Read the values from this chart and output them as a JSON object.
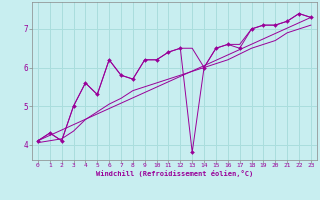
{
  "xlabel": "Windchill (Refroidissement éolien,°C)",
  "bg_color": "#c8eef0",
  "line_color": "#990099",
  "xlim": [
    -0.5,
    23.5
  ],
  "ylim": [
    3.6,
    7.7
  ],
  "xticks": [
    0,
    1,
    2,
    3,
    4,
    5,
    6,
    7,
    8,
    9,
    10,
    11,
    12,
    13,
    14,
    15,
    16,
    17,
    18,
    19,
    20,
    21,
    22,
    23
  ],
  "yticks": [
    4,
    5,
    6,
    7
  ],
  "grid_color": "#aadddd",
  "series1_x": [
    0,
    1,
    2,
    3,
    4,
    5,
    6,
    7,
    8,
    9,
    10,
    11,
    12,
    13,
    14,
    15,
    16,
    17,
    18,
    19,
    20,
    21,
    22,
    23
  ],
  "series1_y": [
    4.1,
    4.3,
    4.1,
    5.0,
    5.6,
    5.3,
    6.2,
    5.8,
    5.7,
    6.2,
    6.2,
    6.4,
    6.5,
    3.8,
    6.0,
    6.5,
    6.6,
    6.5,
    7.0,
    7.1,
    7.1,
    7.2,
    7.4,
    7.3
  ],
  "series2_x": [
    0,
    23
  ],
  "series2_y": [
    4.1,
    7.3
  ],
  "series3_x": [
    0,
    1,
    2,
    3,
    4,
    5,
    6,
    7,
    8,
    9,
    10,
    11,
    12,
    13,
    14,
    15,
    16,
    17,
    18,
    19,
    20,
    21,
    22,
    23
  ],
  "series3_y": [
    4.05,
    4.1,
    4.15,
    4.35,
    4.65,
    4.85,
    5.05,
    5.2,
    5.4,
    5.5,
    5.6,
    5.7,
    5.8,
    5.9,
    6.0,
    6.1,
    6.2,
    6.35,
    6.5,
    6.6,
    6.7,
    6.9,
    7.0,
    7.1
  ],
  "series4_x": [
    0,
    1,
    2,
    3,
    4,
    5,
    6,
    7,
    8,
    9,
    10,
    11,
    12,
    13,
    14,
    15,
    16,
    17,
    18,
    19,
    20,
    21,
    22,
    23
  ],
  "series4_y": [
    4.1,
    4.3,
    4.1,
    5.0,
    5.6,
    5.3,
    6.2,
    5.8,
    5.7,
    6.2,
    6.2,
    6.4,
    6.5,
    6.5,
    6.0,
    6.5,
    6.6,
    6.6,
    7.0,
    7.1,
    7.1,
    7.2,
    7.4,
    7.3
  ]
}
